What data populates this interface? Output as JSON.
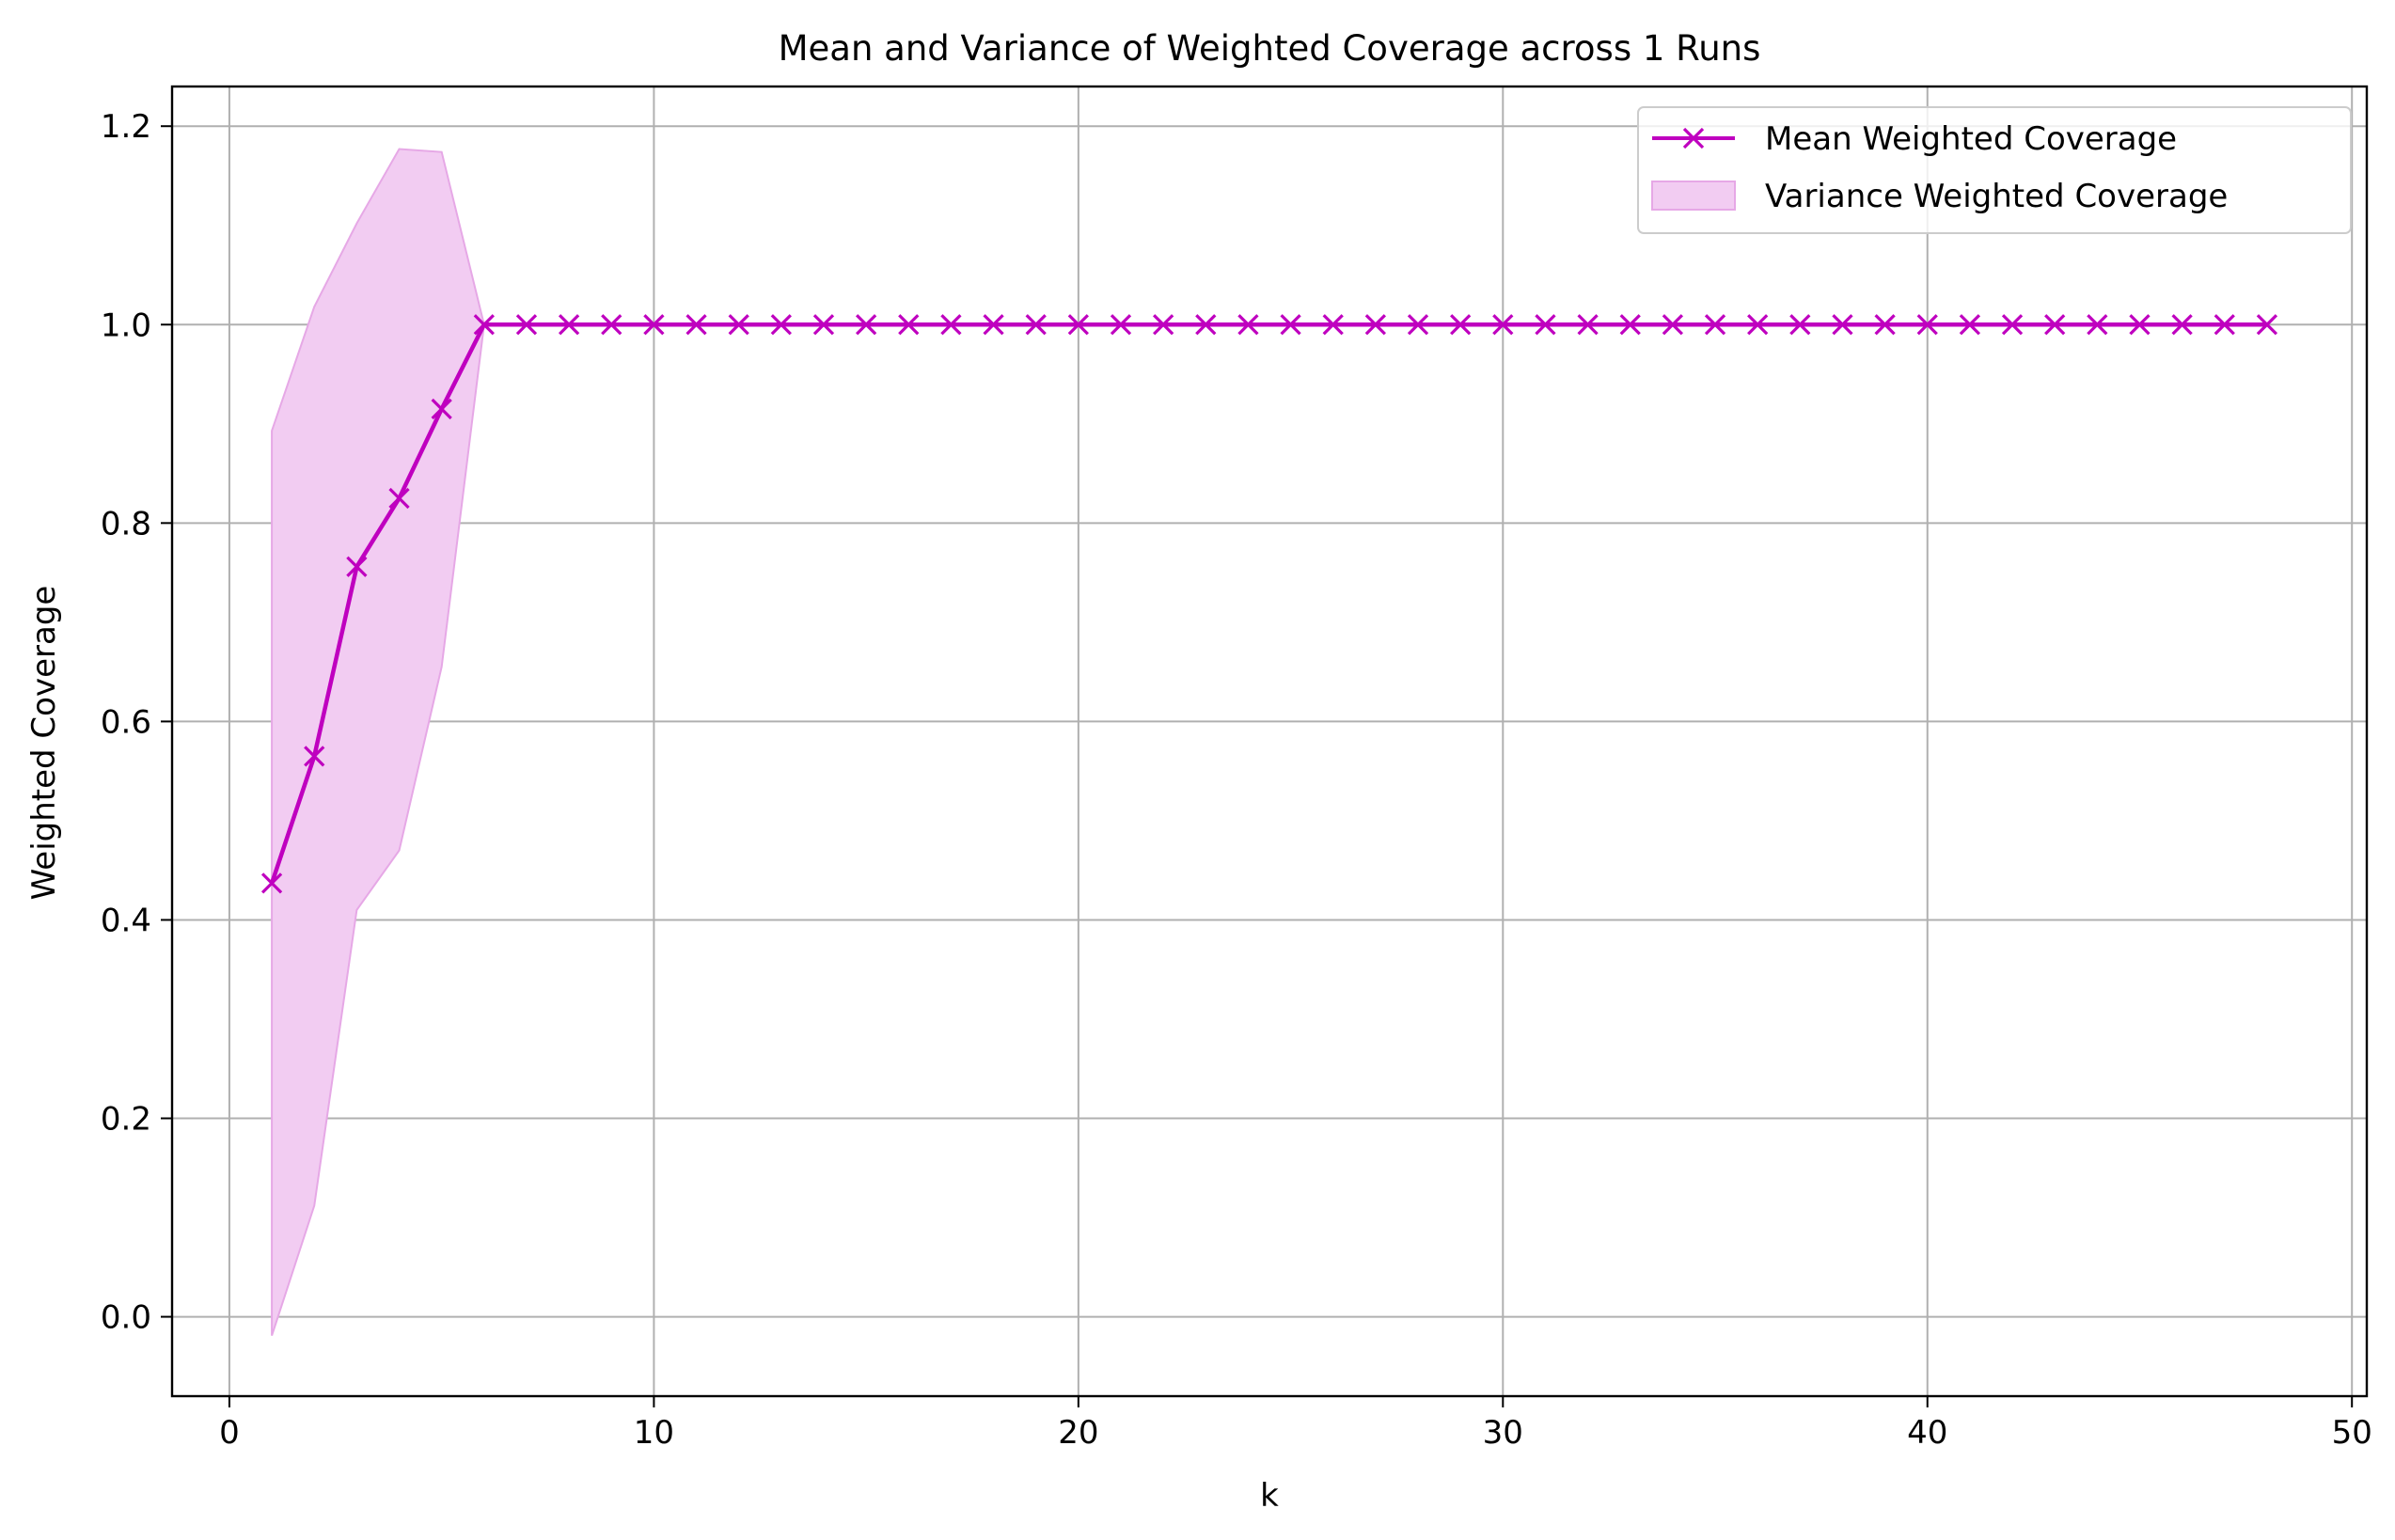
{
  "chart_data": {
    "type": "line",
    "title": "Mean and Variance of Weighted Coverage across 1 Runs",
    "xlabel": "k",
    "ylabel": "Weighted Coverage",
    "xlim": [
      -1.35,
      50.35
    ],
    "ylim": [
      -0.08,
      1.24
    ],
    "xticks": [
      0,
      10,
      20,
      30,
      40,
      50
    ],
    "xtick_labels": [
      "0",
      "10",
      "20",
      "30",
      "40",
      "50"
    ],
    "yticks": [
      0.0,
      0.2,
      0.4,
      0.6,
      0.8,
      1.0,
      1.2
    ],
    "ytick_labels": [
      "0.0",
      "0.2",
      "0.4",
      "0.6",
      "0.8",
      "1.0",
      "1.2"
    ],
    "grid": true,
    "legend_position": "upper-right",
    "series": [
      {
        "name": "Mean Weighted Coverage",
        "kind": "line",
        "marker": "x",
        "color": "#bf00bf",
        "x": [
          1,
          2,
          3,
          4,
          5,
          6,
          7,
          8,
          9,
          10,
          11,
          12,
          13,
          14,
          15,
          16,
          17,
          18,
          19,
          20,
          21,
          22,
          23,
          24,
          25,
          26,
          27,
          28,
          29,
          30,
          31,
          32,
          33,
          34,
          35,
          36,
          37,
          38,
          39,
          40,
          41,
          42,
          43,
          44,
          45,
          46,
          47,
          48
        ],
        "y": [
          0.437,
          0.565,
          0.756,
          0.825,
          0.915,
          1.0,
          1.0,
          1.0,
          1.0,
          1.0,
          1.0,
          1.0,
          1.0,
          1.0,
          1.0,
          1.0,
          1.0,
          1.0,
          1.0,
          1.0,
          1.0,
          1.0,
          1.0,
          1.0,
          1.0,
          1.0,
          1.0,
          1.0,
          1.0,
          1.0,
          1.0,
          1.0,
          1.0,
          1.0,
          1.0,
          1.0,
          1.0,
          1.0,
          1.0,
          1.0,
          1.0,
          1.0,
          1.0,
          1.0,
          1.0,
          1.0,
          1.0,
          1.0
        ]
      },
      {
        "name": "Variance Weighted Coverage",
        "kind": "band",
        "color": "#f2ccf2",
        "edge_color": "#e6a8e6",
        "x": [
          1,
          2,
          3,
          4,
          5,
          6,
          7,
          8,
          9,
          10,
          11,
          12,
          13,
          14,
          15,
          16,
          17,
          18,
          19,
          20,
          21,
          22,
          23,
          24,
          25,
          26,
          27,
          28,
          29,
          30,
          31,
          32,
          33,
          34,
          35,
          36,
          37,
          38,
          39,
          40,
          41,
          42,
          43,
          44,
          45,
          46,
          47,
          48
        ],
        "upper": [
          0.893,
          1.018,
          1.102,
          1.177,
          1.174,
          1.0,
          1.0,
          1.0,
          1.0,
          1.0,
          1.0,
          1.0,
          1.0,
          1.0,
          1.0,
          1.0,
          1.0,
          1.0,
          1.0,
          1.0,
          1.0,
          1.0,
          1.0,
          1.0,
          1.0,
          1.0,
          1.0,
          1.0,
          1.0,
          1.0,
          1.0,
          1.0,
          1.0,
          1.0,
          1.0,
          1.0,
          1.0,
          1.0,
          1.0,
          1.0,
          1.0,
          1.0,
          1.0,
          1.0,
          1.0,
          1.0,
          1.0,
          1.0
        ],
        "lower": [
          -0.019,
          0.112,
          0.41,
          0.47,
          0.655,
          1.0,
          1.0,
          1.0,
          1.0,
          1.0,
          1.0,
          1.0,
          1.0,
          1.0,
          1.0,
          1.0,
          1.0,
          1.0,
          1.0,
          1.0,
          1.0,
          1.0,
          1.0,
          1.0,
          1.0,
          1.0,
          1.0,
          1.0,
          1.0,
          1.0,
          1.0,
          1.0,
          1.0,
          1.0,
          1.0,
          1.0,
          1.0,
          1.0,
          1.0,
          1.0,
          1.0,
          1.0,
          1.0,
          1.0,
          1.0,
          1.0,
          1.0,
          1.0
        ]
      }
    ]
  },
  "colors": {
    "grid": "#b0b0b0",
    "axis": "#000000",
    "legend_border": "#cccccc"
  }
}
